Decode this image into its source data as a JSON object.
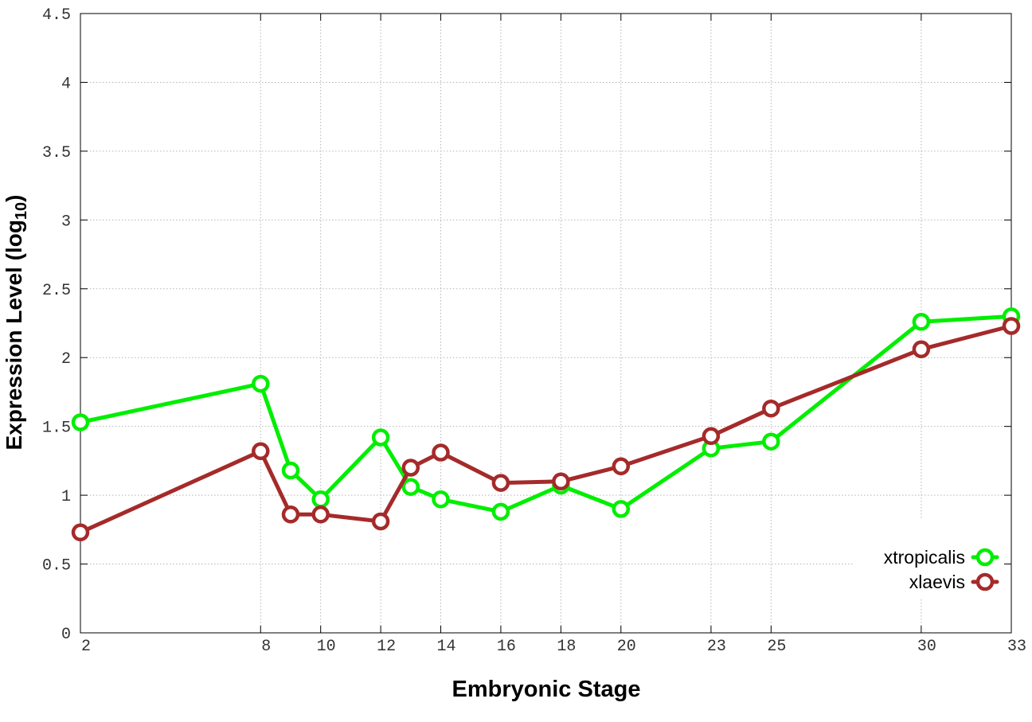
{
  "chart_data": {
    "type": "line",
    "xlabel": "Embryonic Stage",
    "ylabel": {
      "main": "Expression Level (log",
      "subscript": "10",
      "close": ")"
    },
    "xlim": [
      2,
      33
    ],
    "ylim": [
      0,
      4.5
    ],
    "x_ticks": [
      2,
      8,
      10,
      12,
      14,
      16,
      18,
      20,
      23,
      25,
      30,
      33
    ],
    "y_ticks": [
      0,
      0.5,
      1,
      1.5,
      2,
      2.5,
      3,
      3.5,
      4,
      4.5
    ],
    "grid": true,
    "legend_position": "bottom-right",
    "series": [
      {
        "name": "xtropicalis",
        "color": "#00ee00",
        "x": [
          2,
          8,
          9,
          10,
          12,
          13,
          14,
          16,
          18,
          20,
          23,
          25,
          30,
          33
        ],
        "y": [
          1.53,
          1.81,
          1.18,
          0.97,
          1.42,
          1.06,
          0.97,
          0.88,
          1.07,
          0.9,
          1.34,
          1.39,
          2.26,
          2.3
        ]
      },
      {
        "name": "xlaevis",
        "color": "#a52a2a",
        "x": [
          2,
          8,
          9,
          10,
          12,
          13,
          14,
          16,
          18,
          20,
          23,
          25,
          30,
          33
        ],
        "y": [
          0.73,
          1.32,
          0.86,
          0.86,
          0.81,
          1.2,
          1.31,
          1.09,
          1.1,
          1.21,
          1.43,
          1.63,
          2.06,
          2.23
        ]
      }
    ]
  }
}
